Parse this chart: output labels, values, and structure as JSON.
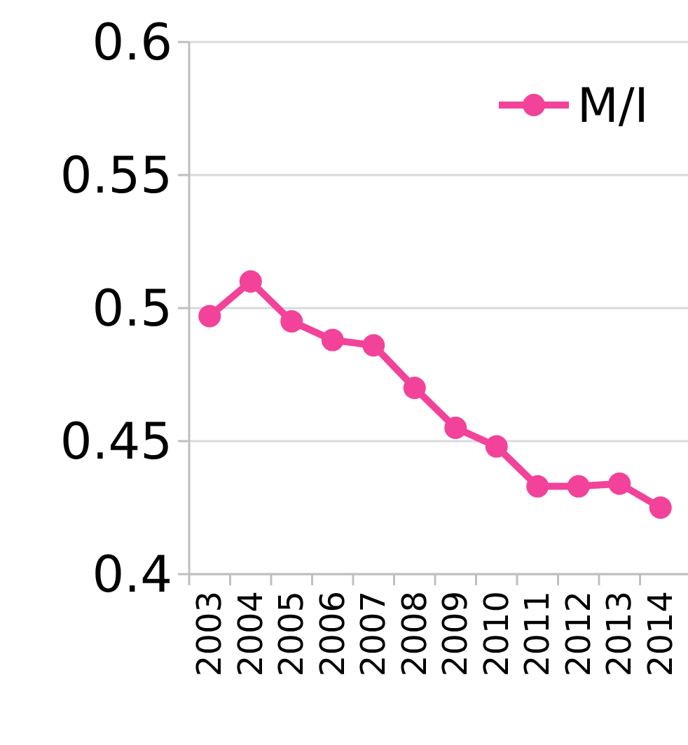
{
  "chart_data": {
    "type": "line",
    "categories": [
      "2003",
      "2004",
      "2005",
      "2006",
      "2007",
      "2008",
      "2009",
      "2010",
      "2011",
      "2012",
      "2013",
      "2014"
    ],
    "series": [
      {
        "name": "M/I",
        "color": "#f2429a",
        "values": [
          0.497,
          0.51,
          0.495,
          0.488,
          0.486,
          0.47,
          0.455,
          0.448,
          0.433,
          0.433,
          0.434,
          0.425
        ]
      }
    ],
    "ylim": [
      0.4,
      0.6
    ],
    "yticks": [
      0.4,
      0.45,
      0.5,
      0.55,
      0.6
    ],
    "grid": "y",
    "legend": "top right",
    "marker": "circle",
    "line_style": "solid"
  }
}
